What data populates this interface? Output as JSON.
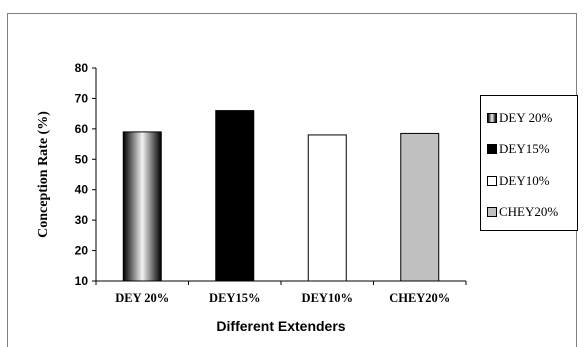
{
  "chart_data": {
    "type": "bar",
    "categories": [
      "DEY 20%",
      "DEY15%",
      "DEY10%",
      "CHEY20%"
    ],
    "values": [
      59,
      66,
      58,
      58.5
    ],
    "xlabel": "Different Extenders",
    "ylabel": "Conception Rate  (%)",
    "ylim": [
      10,
      80
    ],
    "yticks": [
      10,
      20,
      30,
      40,
      50,
      60,
      70,
      80
    ],
    "grid": false,
    "legend_position": "right",
    "legend": [
      "DEY 20%",
      "DEY15%",
      "DEY10%",
      "CHEY20%"
    ],
    "fills": [
      "gradient-gray",
      "#000000",
      "#ffffff",
      "#c0c0c0"
    ]
  }
}
